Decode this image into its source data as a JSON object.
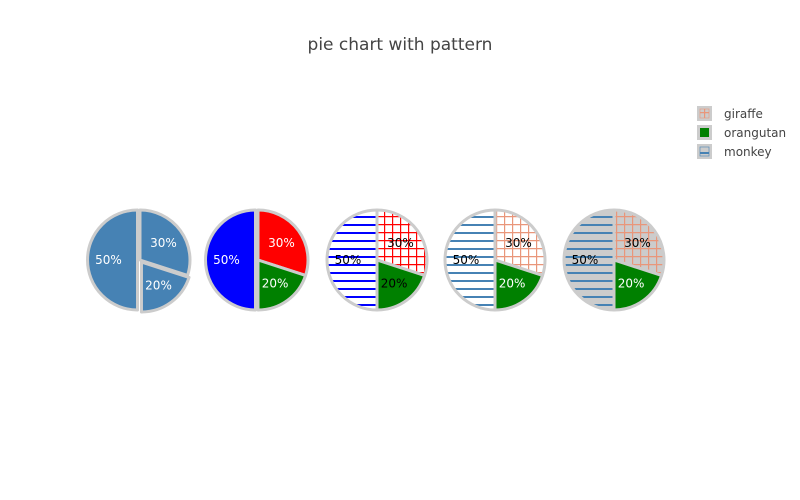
{
  "chart_data": {
    "type": "pie",
    "title": "pie chart with pattern",
    "labels": [
      "giraffe",
      "orangutan",
      "monkey"
    ],
    "values": [
      30,
      20,
      50
    ],
    "value_labels": [
      "30%",
      "20%",
      "50%"
    ],
    "legend": {
      "placement": "top-right",
      "entries": [
        "giraffe",
        "orangutan",
        "monkey"
      ]
    },
    "colors": {
      "steel_blue": "#4682b4",
      "blue": "#0000ff",
      "red": "#ff0000",
      "green": "#008000",
      "peach": "#e9967a",
      "outline": "#cccccc"
    },
    "pies": [
      {
        "name": "pie-1",
        "slices": [
          {
            "label": "giraffe",
            "value": 30,
            "text": "30%",
            "fill": "#4682b4",
            "pattern": "none",
            "text_color": "#ffffff",
            "pull": 0
          },
          {
            "label": "orangutan",
            "value": 20,
            "text": "20%",
            "fill": "#4682b4",
            "pattern": "none",
            "text_color": "#ffffff",
            "pull": 0.05
          },
          {
            "label": "monkey",
            "value": 50,
            "text": "50%",
            "fill": "#4682b4",
            "pattern": "none",
            "text_color": "#ffffff",
            "pull": 0.05
          }
        ]
      },
      {
        "name": "pie-2",
        "slices": [
          {
            "label": "giraffe",
            "value": 30,
            "text": "30%",
            "fill": "#ff0000",
            "pattern": "none",
            "text_color": "#ffffff",
            "pull": 0
          },
          {
            "label": "orangutan",
            "value": 20,
            "text": "20%",
            "fill": "#008000",
            "pattern": "none",
            "text_color": "#ffffff",
            "pull": 0
          },
          {
            "label": "monkey",
            "value": 50,
            "text": "50%",
            "fill": "#0000ff",
            "pattern": "none",
            "text_color": "#ffffff",
            "pull": 0.05
          }
        ]
      },
      {
        "name": "pie-3",
        "slices": [
          {
            "label": "giraffe",
            "value": 30,
            "text": "30%",
            "fill": "#ff0000",
            "pattern": "grid",
            "text_color": "#000000",
            "pull": 0
          },
          {
            "label": "orangutan",
            "value": 20,
            "text": "20%",
            "fill": "#008000",
            "pattern": "none",
            "text_color": "#000000",
            "pull": 0
          },
          {
            "label": "monkey",
            "value": 50,
            "text": "50%",
            "fill": "#0000ff",
            "pattern": "hlines",
            "text_color": "#000000",
            "pull": 0
          }
        ]
      },
      {
        "name": "pie-4",
        "slices": [
          {
            "label": "giraffe",
            "value": 30,
            "text": "30%",
            "fill": "#e9967a",
            "pattern": "grid",
            "text_color": "#000000",
            "pull": 0
          },
          {
            "label": "orangutan",
            "value": 20,
            "text": "20%",
            "fill": "#008000",
            "pattern": "none",
            "text_color": "#ffffff",
            "pull": 0
          },
          {
            "label": "monkey",
            "value": 50,
            "text": "50%",
            "fill": "#4682b4",
            "pattern": "hlines",
            "text_color": "#000000",
            "pull": 0
          }
        ]
      },
      {
        "name": "pie-5",
        "slices": [
          {
            "label": "giraffe",
            "value": 30,
            "text": "30%",
            "fill": "#e9967a",
            "pattern": "grid-shaded",
            "text_color": "#000000",
            "pull": 0
          },
          {
            "label": "orangutan",
            "value": 20,
            "text": "20%",
            "fill": "#008000",
            "pattern": "none",
            "text_color": "#ffffff",
            "pull": 0
          },
          {
            "label": "monkey",
            "value": 50,
            "text": "50%",
            "fill": "#4682b4",
            "pattern": "hlines-shaded",
            "text_color": "#000000",
            "pull": 0
          }
        ]
      }
    ]
  }
}
